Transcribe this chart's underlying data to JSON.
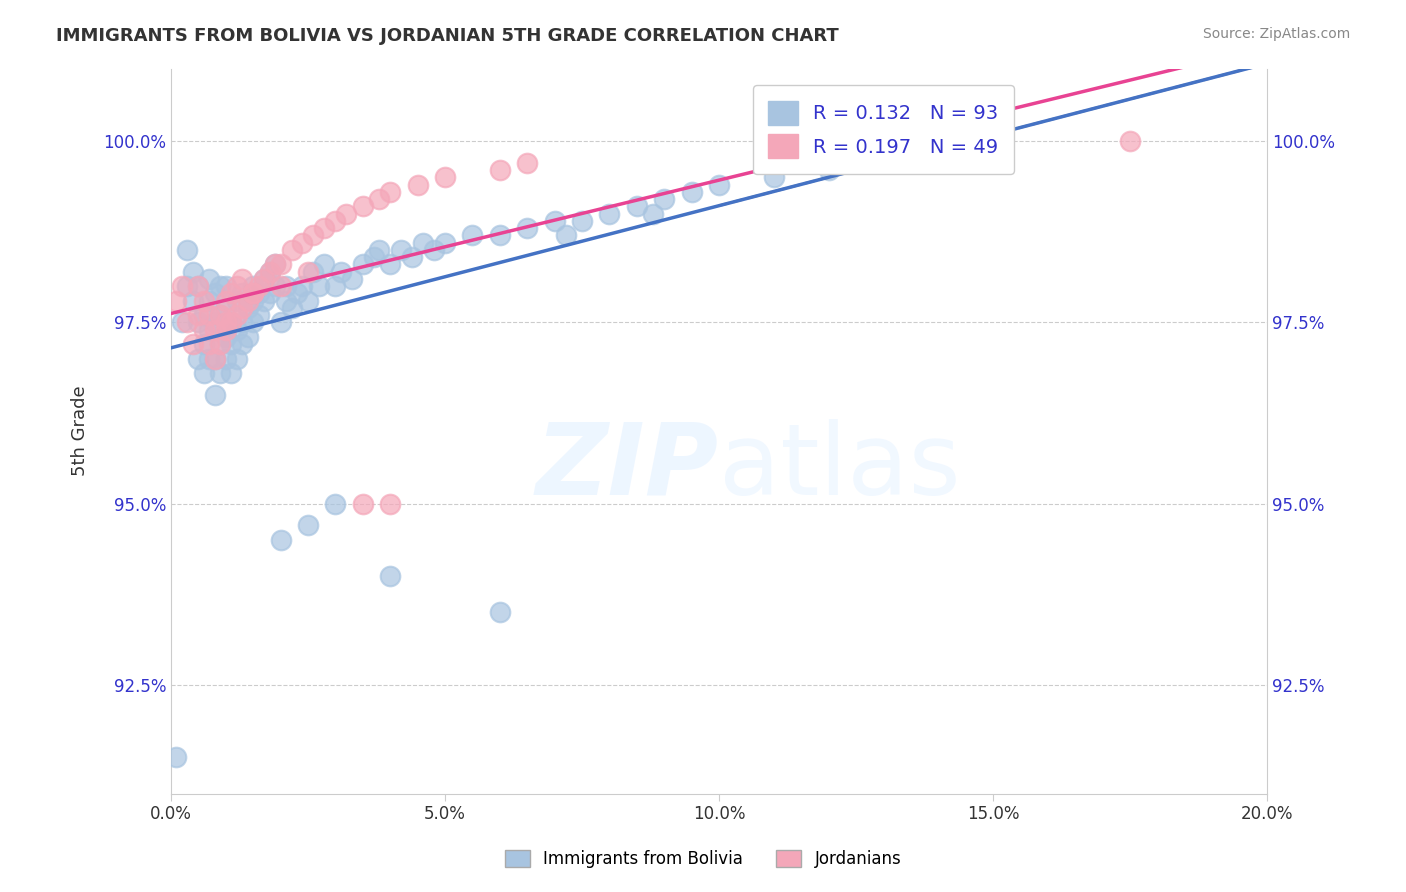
{
  "title": "IMMIGRANTS FROM BOLIVIA VS JORDANIAN 5TH GRADE CORRELATION CHART",
  "source": "Source: ZipAtlas.com",
  "xlabel_ticks": [
    "0.0%",
    "5.0%",
    "10.0%",
    "15.0%",
    "20.0%"
  ],
  "xlabel_tick_vals": [
    0.0,
    0.05,
    0.1,
    0.15,
    0.2
  ],
  "ylabel": "5th Grade",
  "ylabel_ticks": [
    "92.5%",
    "95.0%",
    "97.5%",
    "100.0%"
  ],
  "ylabel_tick_vals": [
    92.5,
    95.0,
    97.5,
    100.0
  ],
  "xlim": [
    0.0,
    0.2
  ],
  "ylim": [
    91.0,
    101.0
  ],
  "R_bolivia": 0.132,
  "N_bolivia": 93,
  "R_jordanian": 0.197,
  "N_jordanian": 49,
  "color_bolivia": "#a8c4e0",
  "color_jordanian": "#f4a7b9",
  "color_bolivia_line": "#4472c4",
  "color_jordanian_line": "#e84393",
  "color_legend_text": "#3333cc",
  "watermark": "ZIPatlas",
  "bolivia_x": [
    0.001,
    0.002,
    0.003,
    0.003,
    0.004,
    0.004,
    0.005,
    0.005,
    0.005,
    0.006,
    0.006,
    0.006,
    0.007,
    0.007,
    0.007,
    0.007,
    0.008,
    0.008,
    0.008,
    0.008,
    0.009,
    0.009,
    0.009,
    0.009,
    0.01,
    0.01,
    0.01,
    0.01,
    0.011,
    0.011,
    0.011,
    0.012,
    0.012,
    0.012,
    0.013,
    0.013,
    0.013,
    0.014,
    0.014,
    0.015,
    0.015,
    0.015,
    0.016,
    0.016,
    0.017,
    0.017,
    0.018,
    0.018,
    0.019,
    0.019,
    0.02,
    0.021,
    0.021,
    0.022,
    0.023,
    0.024,
    0.025,
    0.026,
    0.027,
    0.028,
    0.03,
    0.031,
    0.033,
    0.035,
    0.037,
    0.038,
    0.04,
    0.042,
    0.044,
    0.046,
    0.048,
    0.05,
    0.055,
    0.06,
    0.065,
    0.07,
    0.072,
    0.075,
    0.08,
    0.085,
    0.088,
    0.09,
    0.095,
    0.1,
    0.11,
    0.12,
    0.13,
    0.14,
    0.15,
    0.03,
    0.02,
    0.025,
    0.04,
    0.06
  ],
  "bolivia_y": [
    91.5,
    97.5,
    98.0,
    98.5,
    97.8,
    98.2,
    97.0,
    97.5,
    98.0,
    96.8,
    97.2,
    97.6,
    97.0,
    97.4,
    97.8,
    98.1,
    96.5,
    97.0,
    97.5,
    97.9,
    96.8,
    97.2,
    97.6,
    98.0,
    97.0,
    97.3,
    97.7,
    98.0,
    96.8,
    97.2,
    97.5,
    97.0,
    97.4,
    97.8,
    97.2,
    97.5,
    97.9,
    97.3,
    97.7,
    97.5,
    97.8,
    98.0,
    97.6,
    97.9,
    97.8,
    98.1,
    97.9,
    98.2,
    98.0,
    98.3,
    97.5,
    97.8,
    98.0,
    97.7,
    97.9,
    98.0,
    97.8,
    98.2,
    98.0,
    98.3,
    98.0,
    98.2,
    98.1,
    98.3,
    98.4,
    98.5,
    98.3,
    98.5,
    98.4,
    98.6,
    98.5,
    98.6,
    98.7,
    98.7,
    98.8,
    98.9,
    98.7,
    98.9,
    99.0,
    99.1,
    99.0,
    99.2,
    99.3,
    99.4,
    99.5,
    99.6,
    99.7,
    99.8,
    99.9,
    95.0,
    94.5,
    94.7,
    94.0,
    93.5
  ],
  "jordanian_x": [
    0.001,
    0.002,
    0.003,
    0.004,
    0.005,
    0.005,
    0.006,
    0.006,
    0.007,
    0.007,
    0.008,
    0.008,
    0.009,
    0.009,
    0.01,
    0.01,
    0.011,
    0.011,
    0.012,
    0.012,
    0.013,
    0.013,
    0.014,
    0.015,
    0.016,
    0.017,
    0.018,
    0.019,
    0.02,
    0.022,
    0.024,
    0.026,
    0.028,
    0.03,
    0.032,
    0.035,
    0.038,
    0.04,
    0.045,
    0.05,
    0.06,
    0.065,
    0.035,
    0.04,
    0.025,
    0.02,
    0.015,
    0.175,
    0.01
  ],
  "jordanian_y": [
    97.8,
    98.0,
    97.5,
    97.2,
    97.6,
    98.0,
    97.4,
    97.8,
    97.2,
    97.6,
    97.0,
    97.4,
    97.2,
    97.6,
    97.4,
    97.8,
    97.5,
    97.9,
    97.6,
    98.0,
    97.7,
    98.1,
    97.8,
    97.9,
    98.0,
    98.1,
    98.2,
    98.3,
    98.3,
    98.5,
    98.6,
    98.7,
    98.8,
    98.9,
    99.0,
    99.1,
    99.2,
    99.3,
    99.4,
    99.5,
    99.6,
    99.7,
    95.0,
    95.0,
    98.2,
    98.0,
    97.9,
    100.0,
    97.5
  ]
}
